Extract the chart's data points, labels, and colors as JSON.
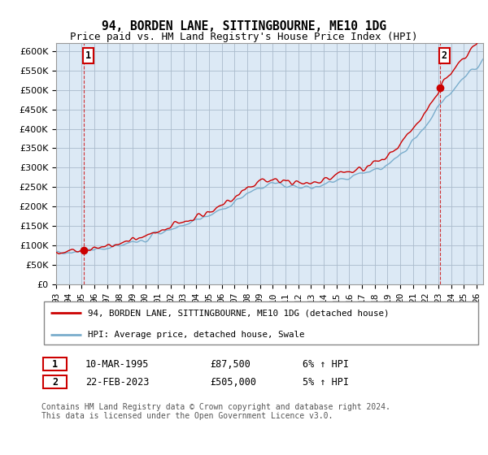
{
  "title": "94, BORDEN LANE, SITTINGBOURNE, ME10 1DG",
  "subtitle": "Price paid vs. HM Land Registry's House Price Index (HPI)",
  "ytick_values": [
    0,
    50000,
    100000,
    150000,
    200000,
    250000,
    300000,
    350000,
    400000,
    450000,
    500000,
    550000,
    600000
  ],
  "ylim": [
    0,
    620000
  ],
  "xlim_start": 1993.0,
  "xlim_end": 2026.5,
  "sale1_x": 1995.19,
  "sale1_y": 87500,
  "sale1_label": "1",
  "sale2_x": 2023.13,
  "sale2_y": 505000,
  "sale2_label": "2",
  "legend_line1": "94, BORDEN LANE, SITTINGBOURNE, ME10 1DG (detached house)",
  "legend_line2": "HPI: Average price, detached house, Swale",
  "table_row1": [
    "1",
    "10-MAR-1995",
    "£87,500",
    "6% ↑ HPI"
  ],
  "table_row2": [
    "2",
    "22-FEB-2023",
    "£505,000",
    "5% ↑ HPI"
  ],
  "footnote": "Contains HM Land Registry data © Crown copyright and database right 2024.\nThis data is licensed under the Open Government Licence v3.0.",
  "line_color_red": "#cc0000",
  "line_color_blue": "#7aadcc",
  "bg_color": "#dce9f5",
  "grid_color": "#aabbcc",
  "title_fontsize": 10.5,
  "subtitle_fontsize": 9,
  "tick_fontsize": 8
}
